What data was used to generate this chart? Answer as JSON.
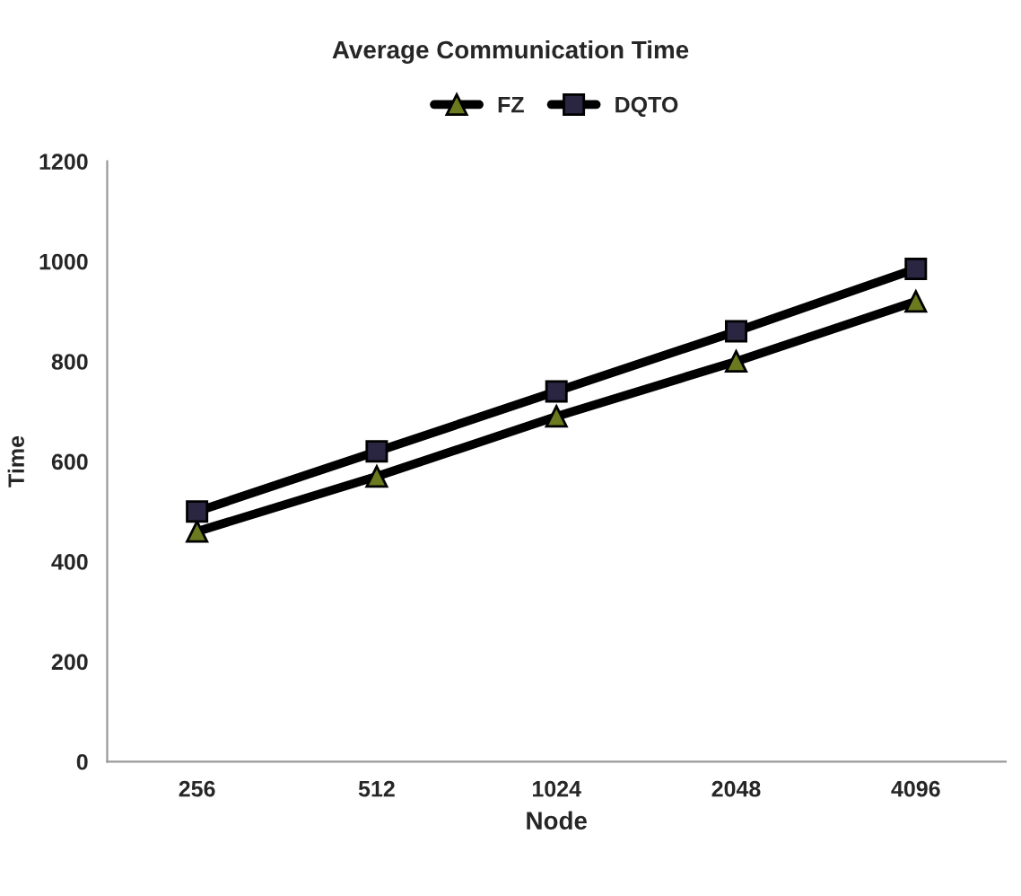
{
  "chart_data": {
    "type": "line",
    "title": "Average Communication Time",
    "xlabel": "Node",
    "ylabel": "Time",
    "categories": [
      "256",
      "512",
      "1024",
      "2048",
      "4096"
    ],
    "series": [
      {
        "name": "FZ",
        "color": "#000000",
        "marker": "triangle",
        "values": [
          460,
          570,
          690,
          800,
          920
        ]
      },
      {
        "name": "DQTO",
        "color": "#000000",
        "marker": "square",
        "values": [
          500,
          620,
          740,
          860,
          985
        ]
      }
    ],
    "ylim": [
      0,
      1200
    ],
    "yticks": [
      0,
      200,
      400,
      600,
      800,
      1000,
      1200
    ],
    "grid": false,
    "legend": "top"
  }
}
